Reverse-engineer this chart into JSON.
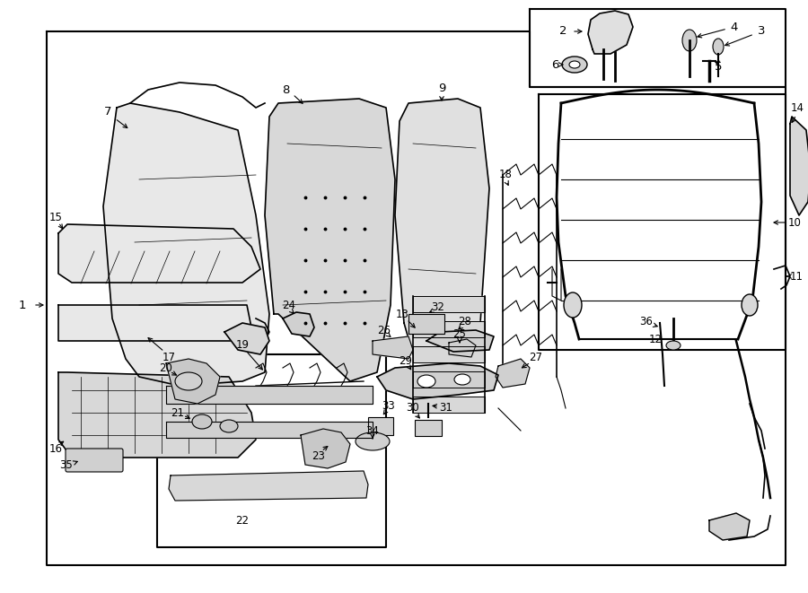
{
  "bg_color": "#ffffff",
  "line_color": "#000000",
  "fig_width": 9.0,
  "fig_height": 6.61,
  "dpi": 100,
  "lw_main": 1.2,
  "lw_thin": 0.7,
  "fs_label": 9
}
